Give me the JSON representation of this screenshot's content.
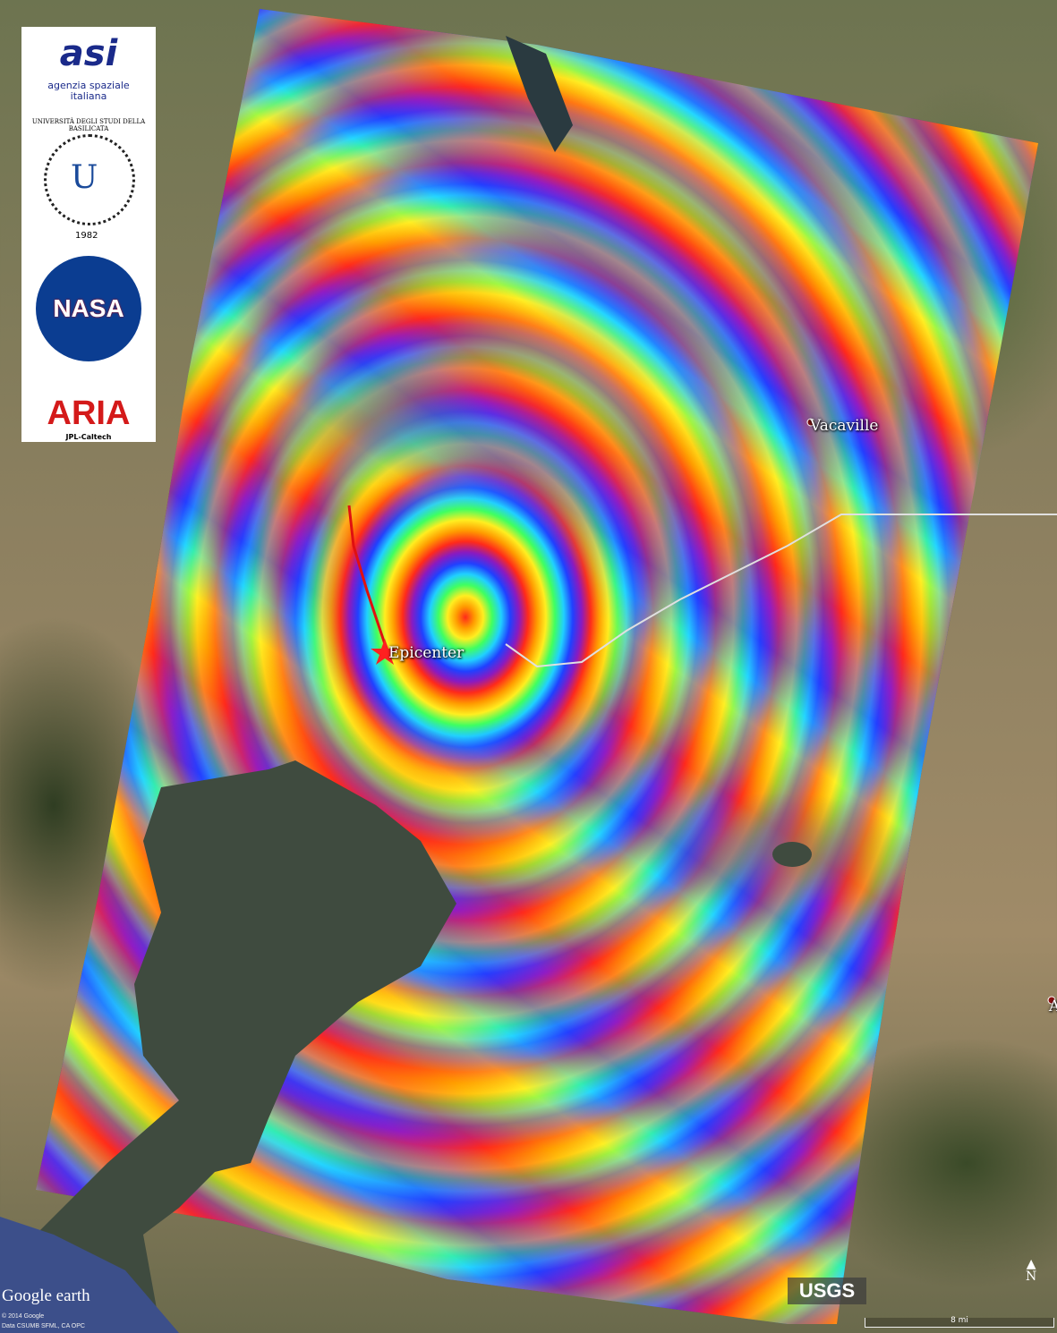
{
  "map": {
    "labels": {
      "vacaville": "Vacaville",
      "epicenter": "Epicenter",
      "edge_place": "A"
    },
    "attribution": {
      "brand": "Google earth",
      "copyright": "© 2014 Google",
      "data": "Data CSUMB SFML, CA OPC"
    },
    "usgs_logo": "USGS",
    "north_arrow": "N",
    "scale_bar": "8 mi"
  },
  "logos": {
    "asi": {
      "text": "agenzia spaziale italiana",
      "mark": "asi"
    },
    "unibas": {
      "text": "UNIVERSITÀ DEGLI STUDI DELLA BASILICATA",
      "year": "1982"
    },
    "nasa": {
      "text": "NASA"
    },
    "aria": {
      "text": "ARIA",
      "sub": "JPL-Caltech"
    }
  },
  "colors": {
    "epicenter_star": "#ff2020",
    "fault_line": "#e01010",
    "road": "#e0e0e0"
  }
}
